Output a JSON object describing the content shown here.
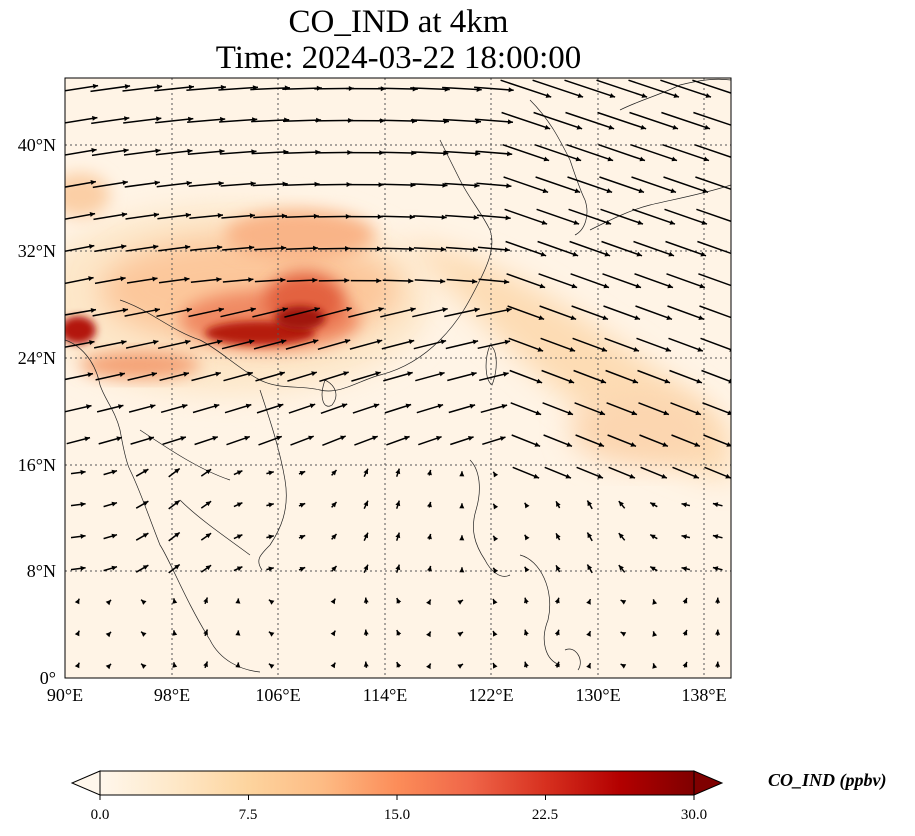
{
  "figure": {
    "title_line1": "CO_IND at 4km",
    "title_line2": "Time: 2024-03-22 18:00:00"
  },
  "map": {
    "projection": "PlateCarree",
    "lon_range": [
      90,
      140
    ],
    "lat_range": [
      0,
      45
    ],
    "gridlines": true,
    "coastlines": true,
    "vector_field": "wind arrows",
    "x_ticks": [
      {
        "lon": 90,
        "label": "90°E"
      },
      {
        "lon": 98,
        "label": "98°E"
      },
      {
        "lon": 106,
        "label": "106°E"
      },
      {
        "lon": 114,
        "label": "114°E"
      },
      {
        "lon": 122,
        "label": "122°E"
      },
      {
        "lon": 130,
        "label": "130°E"
      },
      {
        "lon": 138,
        "label": "138°E"
      }
    ],
    "y_ticks": [
      {
        "lat": 0,
        "label": "0°"
      },
      {
        "lat": 8,
        "label": "8°N"
      },
      {
        "lat": 16,
        "label": "16°N"
      },
      {
        "lat": 24,
        "label": "24°N"
      },
      {
        "lat": 32,
        "label": "32°N"
      },
      {
        "lat": 40,
        "label": "40°N"
      }
    ]
  },
  "colorbar": {
    "label": "CO_IND (ppbv)",
    "min": 0,
    "max": 30,
    "extend": "both",
    "colormap": "OrRd",
    "colors": [
      "#fff7ec",
      "#fee8c8",
      "#fdd49e",
      "#fdbb84",
      "#fc8d59",
      "#ef6548",
      "#d7301f",
      "#b30000",
      "#7f0000"
    ],
    "ticks": [
      {
        "value": 0,
        "label": "0.0"
      },
      {
        "value": 7.5,
        "label": "7.5"
      },
      {
        "value": 15,
        "label": "15.0"
      },
      {
        "value": 22.5,
        "label": "22.5"
      },
      {
        "value": 30,
        "label": "30.0"
      }
    ]
  }
}
